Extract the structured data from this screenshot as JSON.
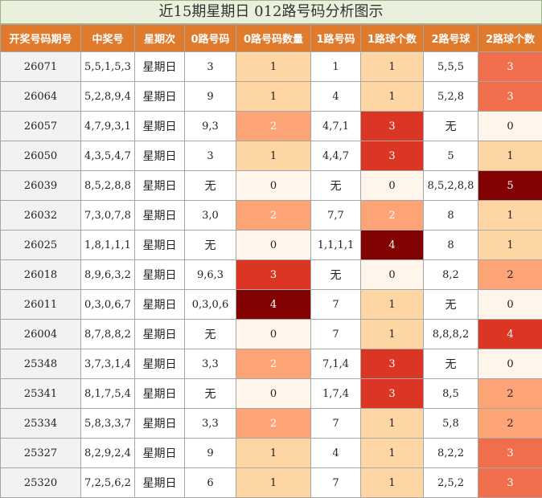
{
  "title": "近15期星期日 012路号码分析图示",
  "headers": [
    "开奖号码期号",
    "中奖号",
    "星期次",
    "0路号码",
    "0路号码数量",
    "1路号码",
    "1路球个数",
    "2路号球",
    "2路球个数"
  ],
  "rows": [
    [
      "26071",
      "5,5,1,5,3",
      "星期日",
      "3",
      "1",
      "1",
      "1",
      "5,5,5",
      "3"
    ],
    [
      "26064",
      "5,2,8,9,4",
      "星期日",
      "9",
      "1",
      "4",
      "1",
      "5,2,8",
      "3"
    ],
    [
      "26057",
      "4,7,9,3,1",
      "星期日",
      "9,3",
      "2",
      "4,7,1",
      "3",
      "无",
      "0"
    ],
    [
      "26050",
      "4,3,5,4,7",
      "星期日",
      "3",
      "1",
      "4,4,7",
      "3",
      "5",
      "1"
    ],
    [
      "26039",
      "8,5,2,8,8",
      "星期日",
      "无",
      "0",
      "无",
      "0",
      "8,5,2,8,8",
      "5"
    ],
    [
      "26032",
      "7,3,0,7,8",
      "星期日",
      "3,0",
      "2",
      "7,7",
      "2",
      "8",
      "1"
    ],
    [
      "26025",
      "1,8,1,1,1",
      "星期日",
      "无",
      "0",
      "1,1,1,1",
      "4",
      "8",
      "1"
    ],
    [
      "26018",
      "8,9,6,3,2",
      "星期日",
      "9,6,3",
      "3",
      "无",
      "0",
      "8,2",
      "2"
    ],
    [
      "26011",
      "0,3,0,6,7",
      "星期日",
      "0,3,0,6",
      "4",
      "7",
      "1",
      "无",
      "0"
    ],
    [
      "26004",
      "8,7,8,8,2",
      "星期日",
      "无",
      "0",
      "7",
      "1",
      "8,8,8,2",
      "4"
    ],
    [
      "25348",
      "3,7,3,1,4",
      "星期日",
      "3,3",
      "2",
      "7,1,4",
      "3",
      "无",
      "0"
    ],
    [
      "25341",
      "8,1,7,5,4",
      "星期日",
      "无",
      "0",
      "1,7,4",
      "3",
      "8,5",
      "2"
    ],
    [
      "25334",
      "5,8,3,3,7",
      "星期日",
      "3,3",
      "2",
      "7",
      "1",
      "5,8",
      "2"
    ],
    [
      "25327",
      "8,2,9,2,4",
      "星期日",
      "9",
      "1",
      "4",
      "1",
      "8,2,2",
      "3"
    ],
    [
      "25320",
      "7,2,5,6,2",
      "星期日",
      "6",
      "1",
      "7",
      "1",
      "2,5,2",
      "3"
    ]
  ],
  "count_colors": {
    "0": "#fff5ea",
    "1": "#fdd6a4",
    "2": "#fca475",
    "3": "#db3624",
    "4": "#820202",
    "5": "#820202"
  },
  "count_colors_col8": {
    "0": "#fff5ea",
    "1": "#fdd6a4",
    "2": "#fca475",
    "3": "#f06e4b",
    "4": "#db3624",
    "5": "#820202"
  }
}
